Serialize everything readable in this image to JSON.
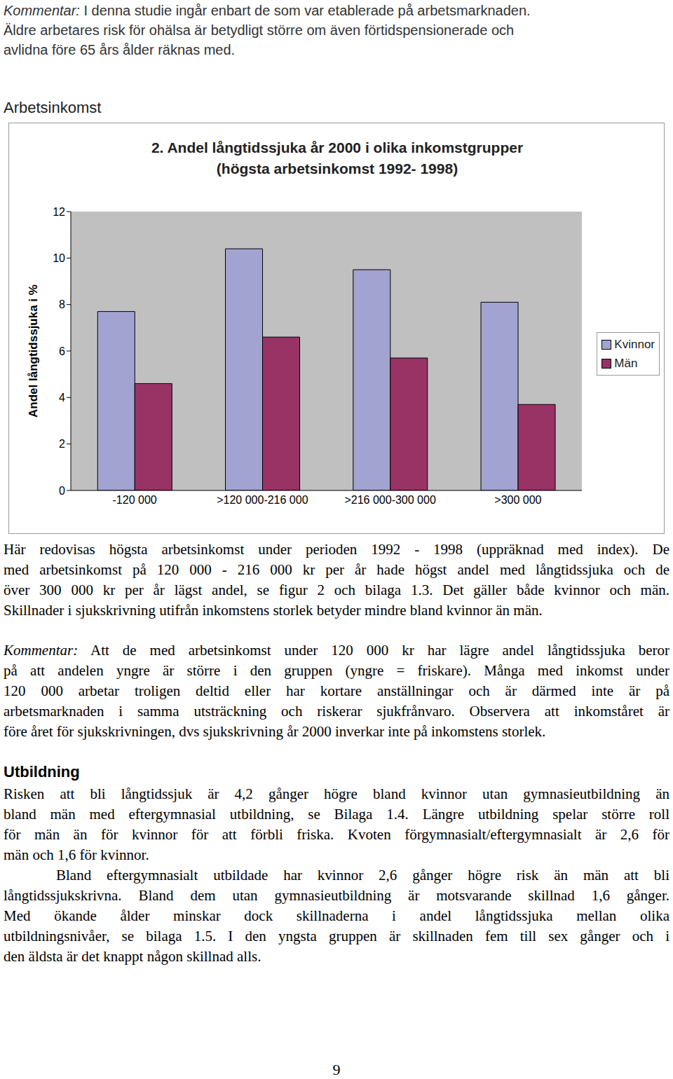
{
  "document": {
    "intro": {
      "lead": "Kommentar:",
      "lines": [
        "I denna studie ingår enbart de som var etablerade på arbetsmarknaden.",
        "Äldre arbetares risk för ohälsa är betydligt större om även förtidspensionerade och",
        "avlidna före 65 års ålder räknas med."
      ]
    },
    "heading1": "Arbetsinkomst",
    "text1": {
      "lines": [
        "Här redovisas högsta arbetsinkomst under perioden 1992 - 1998 (uppräknad med index). De",
        "med arbetsinkomst på 120 000 - 216 000 kr per år hade högst andel med långtidssjuka och de",
        "över 300 000 kr per år lägst andel, se figur 2 och bilaga 1.3. Det gäller både kvinnor och män.",
        "Skillnader i sjukskrivning utifrån inkomstens storlek betyder mindre bland kvinnor än män."
      ]
    },
    "comment2": {
      "lead": "Kommentar:",
      "lines": [
        "Att de med arbetsinkomst under 120 000 kr har lägre andel långtidssjuka beror",
        "på att andelen yngre är större i den gruppen (yngre = friskare). Många med inkomst under",
        "120 000 arbetar troligen deltid eller har kortare anställningar och är därmed inte är på",
        "arbetsmarknaden i samma utsträckning och riskerar sjukfrånvaro. Observera att inkomståret är",
        "före året för sjukskrivningen, dvs sjukskrivning år 2000 inverkar inte på inkomstens storlek."
      ]
    },
    "heading2": "Utbildning",
    "education": [
      [
        "Risken att bli långtidssjuk är 4,2 gånger högre bland kvinnor utan gymnasieutbildning än",
        "bland män med eftergymnasial utbildning, se Bilaga 1.4. Längre utbildning spelar större roll",
        "för män än för kvinnor för att förbli friska. Kvoten förgymnasialt/eftergymnasialt är 2,6 för",
        "män och 1,6 för kvinnor."
      ],
      [
        "Bland eftergymnasialt utbildade har kvinnor 2,6 gånger högre risk än män att bli",
        "långtidssjukskrivna. Bland dem utan gymnasieutbildning är motsvarande skillnad 1,6 gånger.",
        "Med ökande ålder minskar dock skillnaderna i andel långtidssjuka mellan olika",
        "utbildningsnivåer, se bilaga 1.5. I den yngsta gruppen är skillnaden fem till sex gånger och i",
        "den äldsta är det knappt någon skillnad alls."
      ]
    ],
    "page_number": "9"
  },
  "chart_data": {
    "type": "bar",
    "title": "2. Andel långtidssjuka år 2000 i olika inkomstgrupper",
    "subtitle": "(högsta arbetsinkomst 1992- 1998)",
    "y_label": "Andel långtidssjuka i %",
    "categories": [
      "-120 000",
      ">120 000-216 000",
      ">216 000-300 000",
      ">300 000"
    ],
    "series": [
      {
        "name": "Kvinnor",
        "color": "#a3a3d1",
        "values": [
          7.7,
          10.4,
          9.5,
          8.1
        ]
      },
      {
        "name": "Män",
        "color": "#993366",
        "values": [
          4.6,
          6.6,
          5.7,
          3.7
        ]
      }
    ],
    "ylim": [
      0,
      12
    ],
    "yticks": [
      0,
      2,
      4,
      6,
      8,
      10,
      12
    ],
    "grid": false,
    "legend": "right"
  }
}
